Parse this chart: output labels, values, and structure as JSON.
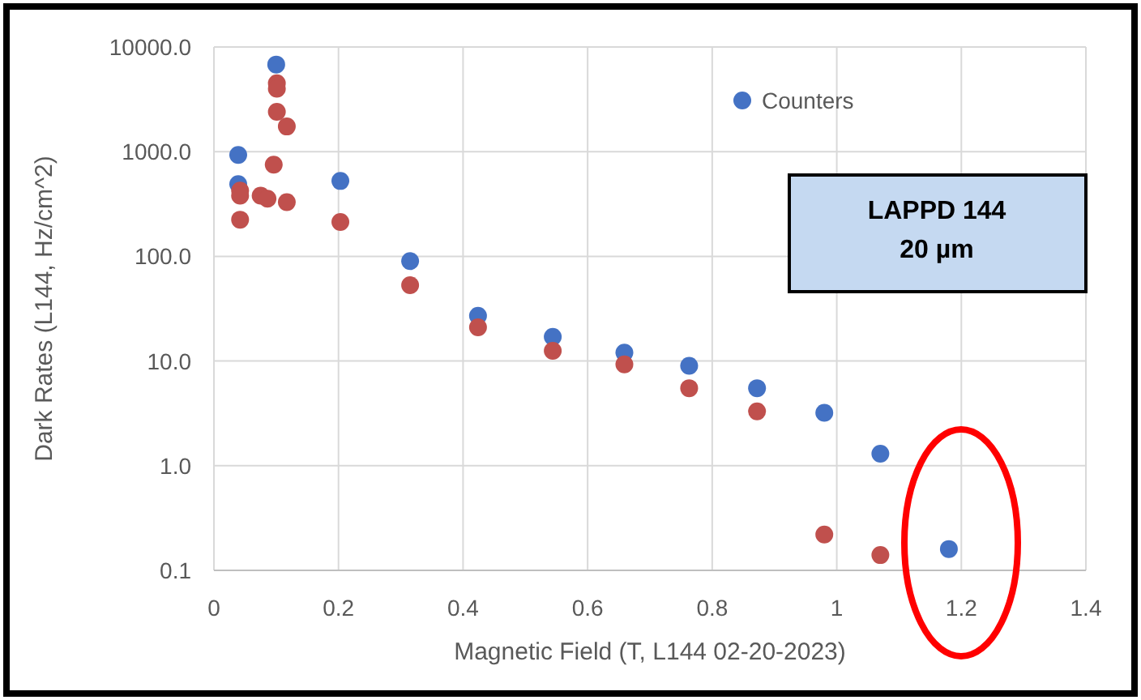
{
  "chart_data": {
    "type": "scatter",
    "xlabel": "Magnetic Field (T, L144 02-20-2023)",
    "ylabel": "Dark Rates (L144, Hz/cm^2)",
    "log": "y",
    "grid": true,
    "legend": "top right",
    "marker": "circle",
    "xlim": [
      0,
      1.4
    ],
    "xticks": [
      0,
      0.2,
      0.4,
      0.6,
      0.8,
      1,
      1.2,
      1.4
    ],
    "ylim": [
      0.1,
      10000
    ],
    "yticks": [
      {
        "value": 0.1,
        "label": "0.1"
      },
      {
        "value": 1,
        "label": "1.0"
      },
      {
        "value": 10,
        "label": "10.0"
      },
      {
        "value": 100,
        "label": "100.0"
      },
      {
        "value": 1000,
        "label": "1000.0"
      },
      {
        "value": 10000,
        "label": "10000.0"
      }
    ],
    "annotations": [
      "LAPPD 144\n20 µm"
    ],
    "series": [
      {
        "name": "Counters",
        "color": "#4472c4",
        "x": [
          0.039,
          0.039,
          0.1,
          0.203,
          0.315,
          0.424,
          0.544,
          0.659,
          0.763,
          0.872,
          0.98,
          1.07,
          1.18
        ],
        "values": [
          930,
          490,
          6800,
          525,
          90,
          27,
          17,
          12,
          9,
          5.5,
          3.2,
          1.3,
          0.16
        ]
      },
      {
        "color": "#c0504d",
        "x": [
          0.042,
          0.042,
          0.042,
          0.075,
          0.086,
          0.096,
          0.101,
          0.101,
          0.101,
          0.117,
          0.117,
          0.203,
          0.315,
          0.424,
          0.544,
          0.659,
          0.763,
          0.872,
          0.98,
          1.07
        ],
        "values": [
          425,
          380,
          224,
          380,
          355,
          750,
          4500,
          4000,
          2400,
          1740,
          330,
          213,
          53,
          21,
          12.5,
          9.3,
          5.5,
          3.3,
          0.22,
          0.14
        ]
      }
    ]
  }
}
